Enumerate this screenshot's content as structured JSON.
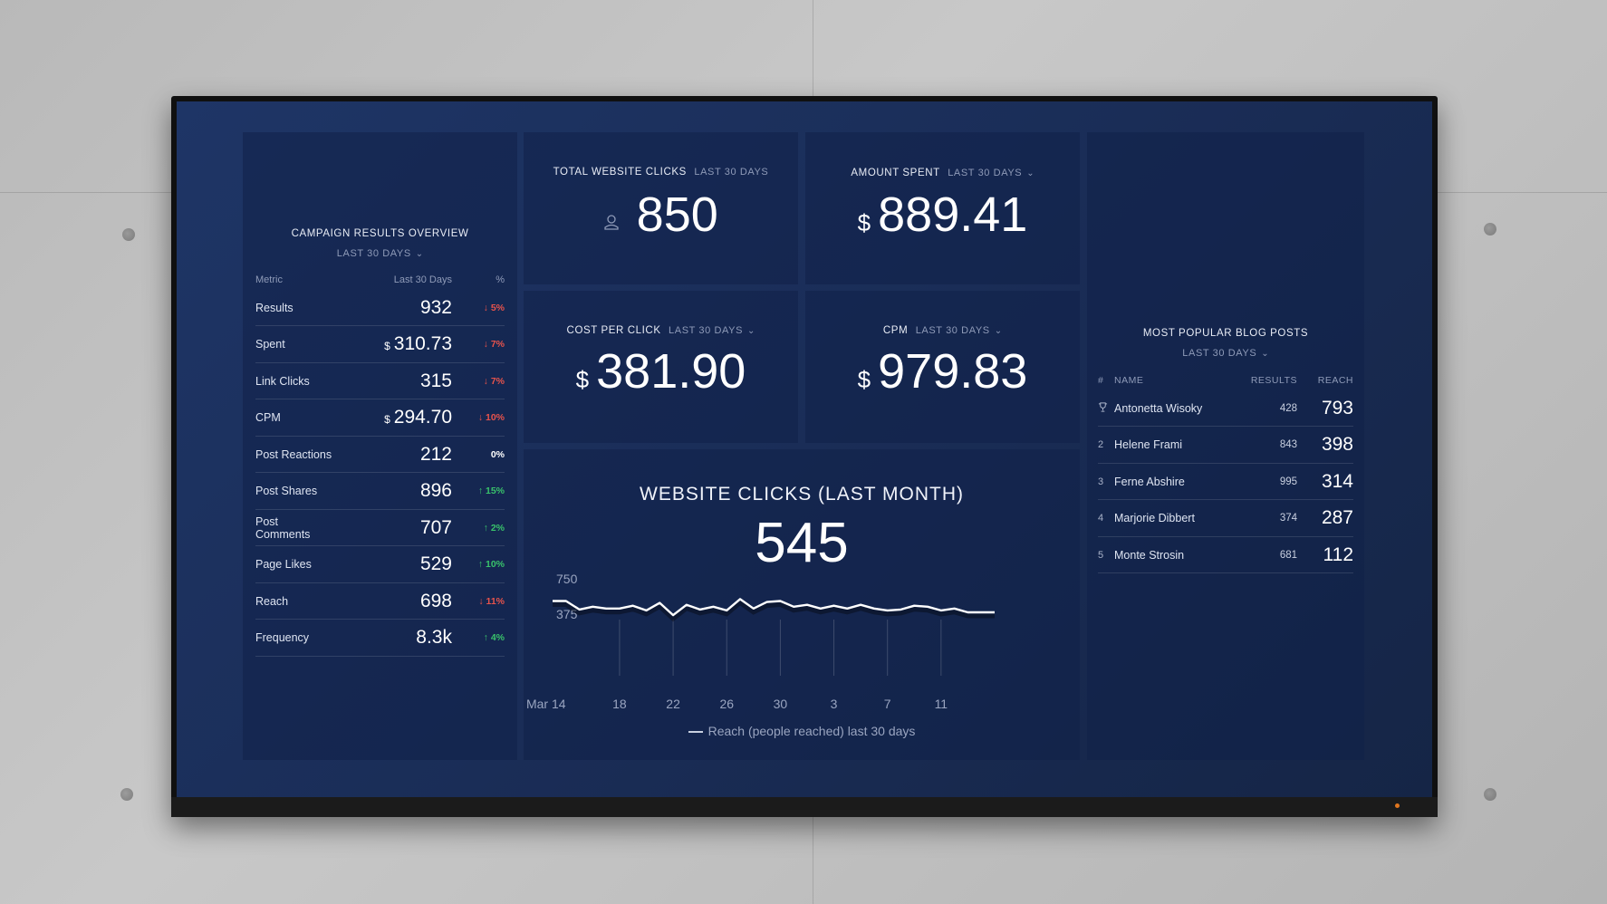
{
  "campaign": {
    "title": "CAMPAIGN RESULTS OVERVIEW",
    "period": "LAST 30 DAYS",
    "headers": {
      "metric": "Metric",
      "value": "Last 30 Days",
      "pct": "%"
    },
    "rows": [
      {
        "metric": "Results",
        "prefix": "",
        "value": "932",
        "change": "↓ 5%",
        "dir": "down"
      },
      {
        "metric": "Spent",
        "prefix": "$",
        "value": "310.73",
        "change": "↓ 7%",
        "dir": "down"
      },
      {
        "metric": "Link Clicks",
        "prefix": "",
        "value": "315",
        "change": "↓ 7%",
        "dir": "down"
      },
      {
        "metric": "CPM",
        "prefix": "$",
        "value": "294.70",
        "change": "↓ 10%",
        "dir": "down"
      },
      {
        "metric": "Post Reactions",
        "prefix": "",
        "value": "212",
        "change": "0%",
        "dir": "neutral"
      },
      {
        "metric": "Post Shares",
        "prefix": "",
        "value": "896",
        "change": "↑ 15%",
        "dir": "up"
      },
      {
        "metric": "Post Comments",
        "prefix": "",
        "value": "707",
        "change": "↑ 2%",
        "dir": "up"
      },
      {
        "metric": "Page Likes",
        "prefix": "",
        "value": "529",
        "change": "↑ 10%",
        "dir": "up"
      },
      {
        "metric": "Reach",
        "prefix": "",
        "value": "698",
        "change": "↓ 11%",
        "dir": "down"
      },
      {
        "metric": "Frequency",
        "prefix": "",
        "value": "8.3k",
        "change": "↑ 4%",
        "dir": "up"
      }
    ]
  },
  "total_clicks": {
    "title": "TOTAL WEBSITE CLICKS",
    "period": "LAST 30 DAYS",
    "value": "850",
    "icon": "person-icon"
  },
  "amount_spent": {
    "title": "AMOUNT SPENT",
    "period": "LAST 30 DAYS",
    "currency": "$",
    "value": "889.41"
  },
  "cost_per_click": {
    "title": "COST PER CLICK",
    "period": "LAST 30 DAYS",
    "currency": "$",
    "value": "381.90"
  },
  "cpm": {
    "title": "CPM",
    "period": "LAST 30 DAYS",
    "currency": "$",
    "value": "979.83"
  },
  "website_clicks": {
    "title": "WEBSITE CLICKS (LAST MONTH)",
    "value": "545",
    "legend": "Reach (people reached) last 30 days"
  },
  "chart_data": {
    "type": "line",
    "title": "WEBSITE CLICKS (LAST MONTH)",
    "y_ticks": [
      "750",
      "375"
    ],
    "x_ticks": [
      "Mar 14",
      "18",
      "22",
      "26",
      "30",
      "3",
      "7",
      "11"
    ],
    "ylim": [
      0,
      750
    ],
    "grid": true,
    "series": [
      {
        "name": "Reach (people reached) last 30 days",
        "x": [
          "Mar 13",
          "Mar 14",
          "Mar 15",
          "Mar 16",
          "Mar 17",
          "Mar 18",
          "Mar 19",
          "Mar 20",
          "Mar 21",
          "Mar 22",
          "Mar 23",
          "Mar 24",
          "Mar 25",
          "Mar 26",
          "Mar 27",
          "Mar 28",
          "Mar 29",
          "Mar 30",
          "Mar 31",
          "Apr 1",
          "Apr 2",
          "Apr 3",
          "Apr 4",
          "Apr 5",
          "Apr 6",
          "Apr 7",
          "Apr 8",
          "Apr 9",
          "Apr 10",
          "Apr 11",
          "Apr 12",
          "Apr 13",
          "Apr 14",
          "Apr 15"
        ],
        "values": [
          620,
          620,
          530,
          560,
          540,
          540,
          570,
          520,
          600,
          470,
          580,
          530,
          560,
          520,
          640,
          540,
          610,
          620,
          560,
          580,
          540,
          570,
          540,
          580,
          540,
          520,
          530,
          570,
          560,
          520,
          540,
          500,
          500,
          500
        ]
      }
    ]
  },
  "blog": {
    "title": "MOST POPULAR BLOG POSTS",
    "period": "LAST 30 DAYS",
    "headers": {
      "num": "#",
      "name": "NAME",
      "results": "RESULTS",
      "reach": "REACH"
    },
    "rows": [
      {
        "num": "",
        "name": "Antonetta Wisoky",
        "results": "428",
        "reach": "793"
      },
      {
        "num": "2",
        "name": "Helene Frami",
        "results": "843",
        "reach": "398"
      },
      {
        "num": "3",
        "name": "Ferne Abshire",
        "results": "995",
        "reach": "314"
      },
      {
        "num": "4",
        "name": "Marjorie Dibbert",
        "results": "374",
        "reach": "287"
      },
      {
        "num": "5",
        "name": "Monte Strosin",
        "results": "681",
        "reach": "112"
      }
    ]
  }
}
